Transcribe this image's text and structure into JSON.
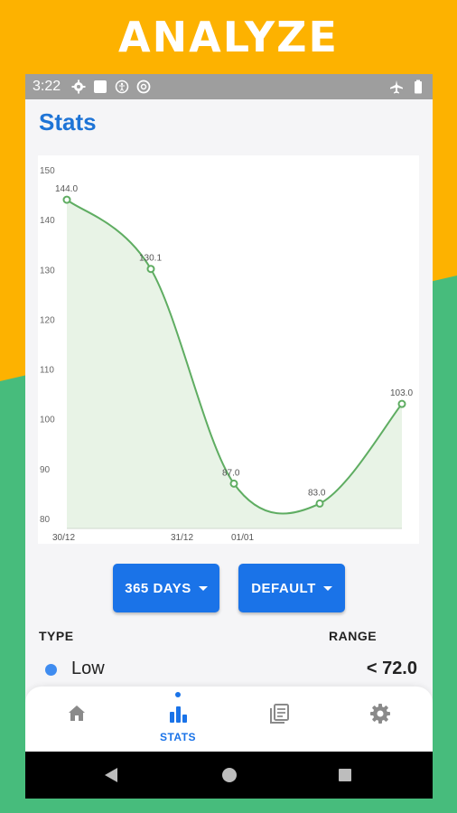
{
  "promo": {
    "headline": "ANALYZE",
    "colors": {
      "top": "#fdb200",
      "bottom": "#47bc7c"
    }
  },
  "status_bar": {
    "time": "3:22",
    "left_icons": [
      "gear-icon",
      "square-icon",
      "accessibility-icon",
      "data-saver-icon"
    ],
    "right_icons": [
      "airplane-icon",
      "battery-icon"
    ]
  },
  "header": {
    "title": "Stats"
  },
  "chart_data": {
    "type": "area",
    "x": [
      "30/12",
      "31/12",
      "31/12",
      "01/01",
      "01/01"
    ],
    "x_tick_labels": [
      "30/12",
      "31/12",
      "01/01"
    ],
    "series": [
      {
        "values": [
          144.0,
          130.1,
          87.0,
          83.0,
          103.0
        ]
      }
    ],
    "data_labels": [
      "144.0",
      "130.1",
      "87.0",
      "83.0",
      "103.0"
    ],
    "y_ticks": [
      80,
      90,
      100,
      110,
      120,
      130,
      140,
      150
    ],
    "ylim": [
      78,
      150
    ],
    "title": "",
    "xlabel": "",
    "ylabel": "",
    "grid": false,
    "colors": {
      "line": "#5fad62",
      "fill": "#e8f3e6"
    }
  },
  "controls": {
    "period_button": "365 DAYS",
    "mode_button": "DEFAULT",
    "accent": "#1a73e8"
  },
  "table": {
    "type_header": "TYPE",
    "range_header": "RANGE",
    "rows": [
      {
        "label": "Low",
        "range": "<  72.0",
        "dot_color": "#3f8cf0"
      }
    ]
  },
  "bottom_nav": {
    "items": [
      {
        "icon": "home-icon",
        "label": ""
      },
      {
        "icon": "stats-icon",
        "label": "STATS",
        "active": true
      },
      {
        "icon": "journal-icon",
        "label": ""
      },
      {
        "icon": "settings-icon",
        "label": ""
      }
    ]
  },
  "system_nav": {
    "icons": [
      "back-icon",
      "home-circle-icon",
      "recents-icon"
    ]
  }
}
